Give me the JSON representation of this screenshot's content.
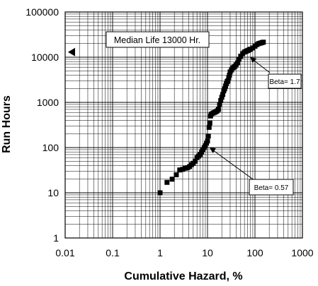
{
  "chart_data": {
    "type": "scatter",
    "title": "",
    "xlabel": "Cumulative Hazard, %",
    "ylabel": "Run Hours",
    "x_scale": "log",
    "y_scale": "log",
    "xlim": [
      0.01,
      1000
    ],
    "ylim": [
      1,
      100000
    ],
    "x_ticks": [
      "0.01",
      "0.1",
      "1",
      "10",
      "100",
      "1000"
    ],
    "y_ticks": [
      "1",
      "10",
      "100",
      "1000",
      "10000",
      "100000"
    ],
    "grid": true,
    "legend": "none",
    "series": [
      {
        "color": "#000000",
        "marker": "square",
        "x": [
          1.0,
          1.4,
          1.8,
          2.2,
          2.6,
          3.0,
          3.4,
          3.8,
          4.2,
          4.6,
          5.0,
          5.5,
          6.0,
          6.5,
          7.0,
          7.5,
          8.0,
          8.5,
          9.0,
          9.5,
          10.0,
          10.4,
          10.8,
          11.2,
          11.6,
          12.0,
          13.0,
          14.0,
          15.0,
          16.0,
          17.0,
          18.0,
          19.0,
          20.0,
          21.0,
          22.0,
          23.0,
          24.0,
          25.0,
          26.0,
          27.0,
          28.0,
          29.0,
          30.0,
          32.0,
          34.0,
          36.0,
          38.0,
          40.0,
          43.0,
          46.0,
          50.0,
          55.0,
          60.0,
          65.0,
          70.0,
          75.0,
          80.0,
          90.0,
          100.0,
          110.0,
          120.0,
          130.0,
          140.0,
          150.0
        ],
        "y": [
          10,
          17,
          20,
          25,
          32,
          33,
          35,
          36,
          38,
          42,
          45,
          50,
          60,
          65,
          70,
          80,
          90,
          100,
          110,
          125,
          140,
          180,
          280,
          350,
          500,
          550,
          580,
          600,
          620,
          650,
          700,
          900,
          1100,
          1300,
          1500,
          1800,
          2000,
          2300,
          2600,
          2900,
          3000,
          3500,
          4000,
          4700,
          5200,
          5800,
          6000,
          6300,
          6800,
          7500,
          9000,
          10500,
          12000,
          13000,
          13500,
          14000,
          14500,
          15000,
          16000,
          17500,
          19000,
          20000,
          20500,
          21000,
          21500
        ]
      }
    ],
    "annotations": [
      {
        "text": "Median Life 13000 Hr.",
        "y": 13000
      },
      {
        "text": "Beta= 1.7",
        "x": 80,
        "y": 10000
      },
      {
        "text": "Beta= 0.57",
        "x": 11,
        "y": 100
      }
    ]
  }
}
